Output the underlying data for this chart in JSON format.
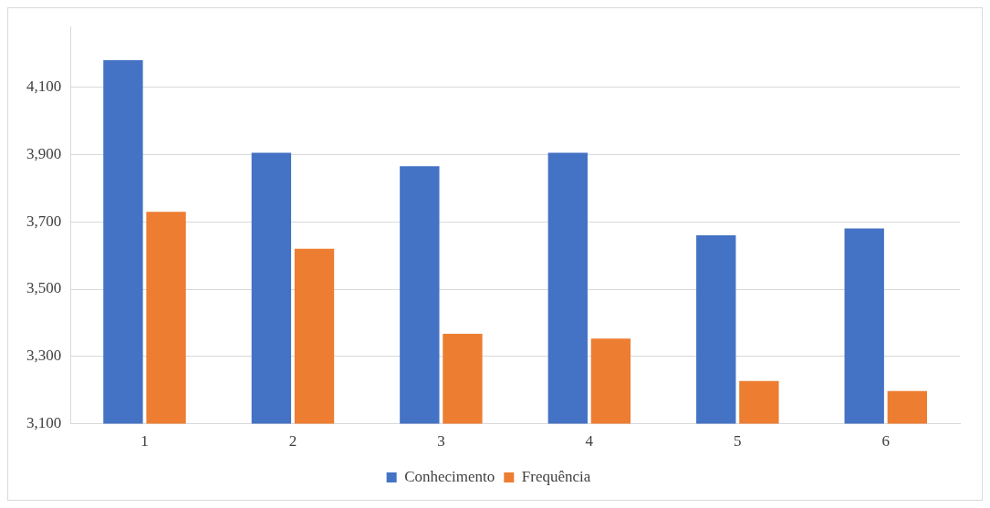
{
  "chart_data": {
    "type": "bar",
    "categories": [
      "1",
      "2",
      "3",
      "4",
      "5",
      "6"
    ],
    "series": [
      {
        "name": "Conhecimento",
        "color": "#4472c4",
        "values": [
          4180,
          3905,
          3865,
          3905,
          3660,
          3680
        ]
      },
      {
        "name": "Frequência",
        "color": "#ed7d31",
        "values": [
          3730,
          3620,
          3367,
          3353,
          3227,
          3197
        ]
      }
    ],
    "ylim": [
      3100,
      4280
    ],
    "yticks": [
      {
        "value": 3100,
        "label": "3,100"
      },
      {
        "value": 3300,
        "label": "3,300"
      },
      {
        "value": 3500,
        "label": "3,500"
      },
      {
        "value": 3700,
        "label": "3,700"
      },
      {
        "value": 3900,
        "label": "3,900"
      },
      {
        "value": 4100,
        "label": "4,100"
      }
    ],
    "grid": "y",
    "legend": "bottom"
  }
}
